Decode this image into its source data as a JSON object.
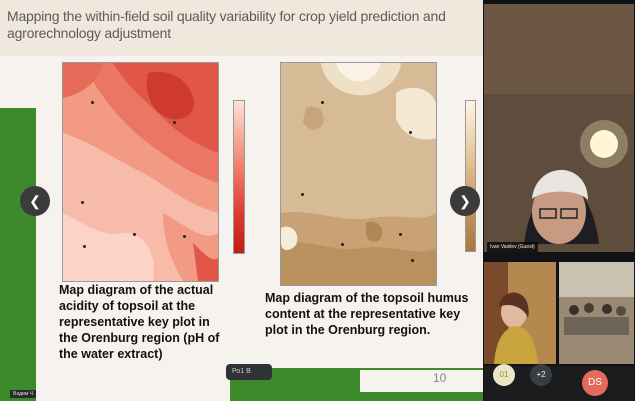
{
  "slide": {
    "title": "Mapping the within-field soil quality variability for crop yield prediction and agrorechnology adjustment",
    "caption_left": "Map diagram of the actual acidity of topsoil at the representative key plot in the Orenburg region (pH of the water extract)",
    "caption_right": "Map diagram of the topsoil humus content at the representative key plot in the Orenburg region.",
    "page_number": "10",
    "nav_prev": "❮",
    "nav_next": "❯",
    "toolbar_label": "Ро1 В",
    "presenter_label": "Вадим Ч"
  },
  "video": {
    "main_name": "Ivan Vasilev (Guest)",
    "ctrl_left": "01",
    "ctrl_mid": "+2",
    "ctrl_right": "DS"
  },
  "colors": {
    "green": "#3c8a2c",
    "red_max": "#c41a14",
    "brown_max": "#a9763a",
    "avatar_red": "#e46b5c"
  }
}
